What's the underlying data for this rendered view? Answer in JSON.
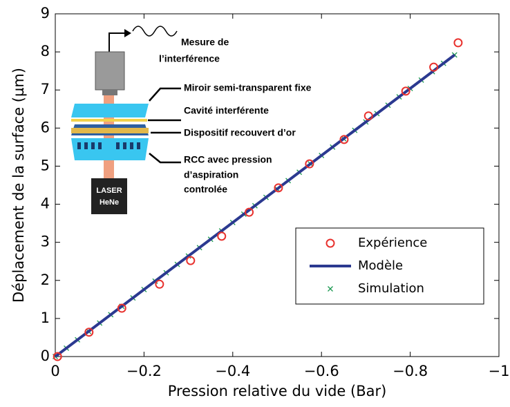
{
  "chart_data": {
    "type": "line",
    "xlabel": "Pression relative du vide (Bar)",
    "ylabel": "Déplacement de la surface (µm)",
    "xlim": [
      0,
      -1
    ],
    "ylim": [
      0,
      9
    ],
    "xticks": [
      0,
      {
        "value": -0.2,
        "label": "−0.2"
      },
      {
        "value": -0.4,
        "label": "−0.4"
      },
      {
        "value": -0.6,
        "label": "−0.6"
      },
      {
        "value": -0.8,
        "label": "−0.8"
      },
      {
        "value": -1,
        "label": "−1"
      }
    ],
    "yticks": [
      0,
      1,
      2,
      3,
      4,
      5,
      6,
      7,
      8,
      9
    ],
    "legend": "lower right",
    "series": [
      {
        "name": "Expérience",
        "type": "scatter",
        "marker": "o",
        "color": "#e8322e",
        "x": [
          -0.005,
          -0.076,
          -0.15,
          -0.235,
          -0.305,
          -0.375,
          -0.437,
          -0.503,
          -0.573,
          -0.651,
          -0.706,
          -0.79,
          -0.853,
          -0.908
        ],
        "values": [
          0,
          0.64,
          1.27,
          1.9,
          2.52,
          3.16,
          3.79,
          4.43,
          5.06,
          5.7,
          6.32,
          6.97,
          7.6,
          8.24
        ]
      },
      {
        "name": "Modèle",
        "type": "line",
        "color": "#2b3990",
        "x": [
          0,
          -0.9
        ],
        "values": [
          0,
          7.92
        ]
      },
      {
        "name": "Simulation",
        "type": "scatter",
        "marker": "x",
        "color": "#1a9850",
        "x": [
          0,
          -0.025,
          -0.05,
          -0.075,
          -0.1,
          -0.125,
          -0.15,
          -0.175,
          -0.2,
          -0.225,
          -0.25,
          -0.275,
          -0.3,
          -0.325,
          -0.35,
          -0.375,
          -0.4,
          -0.425,
          -0.45,
          -0.475,
          -0.5,
          -0.525,
          -0.55,
          -0.575,
          -0.6,
          -0.625,
          -0.65,
          -0.675,
          -0.7,
          -0.725,
          -0.75,
          -0.775,
          -0.8,
          -0.825,
          -0.85,
          -0.875,
          -0.9
        ],
        "values": [
          0,
          0.22,
          0.44,
          0.66,
          0.88,
          1.1,
          1.32,
          1.54,
          1.76,
          1.98,
          2.2,
          2.42,
          2.64,
          2.86,
          3.08,
          3.3,
          3.52,
          3.74,
          3.96,
          4.18,
          4.4,
          4.62,
          4.84,
          5.06,
          5.28,
          5.5,
          5.72,
          5.94,
          6.16,
          6.38,
          6.6,
          6.82,
          7.04,
          7.26,
          7.48,
          7.7,
          7.92
        ]
      }
    ],
    "annotations": [
      "Mesure de",
      "l’interférence",
      "Miroir semi-transparent fixe",
      "Cavité interférente",
      "Dispositif recouvert d’or",
      "RCC avec pression",
      "d’aspiration",
      "controlée",
      "LASER",
      "HeNe"
    ]
  }
}
